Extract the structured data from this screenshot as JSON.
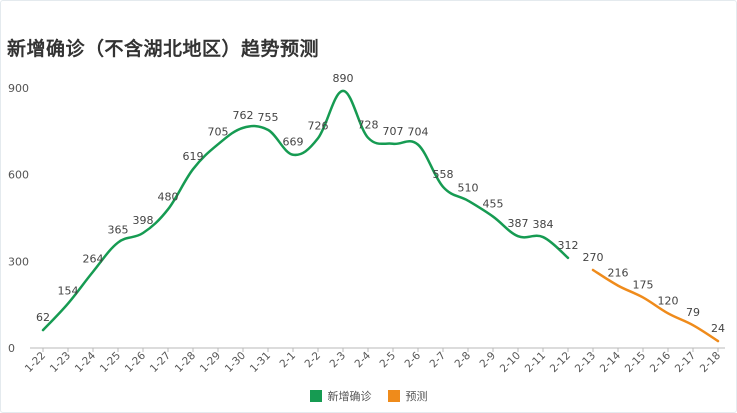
{
  "title": "新增确诊（不含湖北地区）趋势预测",
  "chart_data": {
    "type": "line",
    "title": "新增确诊（不含湖北地区）趋势预测",
    "categories": [
      "1-22",
      "1-23",
      "1-24",
      "1-25",
      "1-26",
      "1-27",
      "1-28",
      "1-29",
      "1-30",
      "1-31",
      "2-1",
      "2-2",
      "2-3",
      "2-4",
      "2-5",
      "2-6",
      "2-7",
      "2-8",
      "2-9",
      "2-10",
      "2-11",
      "2-12",
      "2-13",
      "2-14",
      "2-15",
      "2-16",
      "2-17",
      "2-18"
    ],
    "series": [
      {
        "name": "新增确诊",
        "color": "#169b52",
        "values": [
          62,
          154,
          264,
          365,
          398,
          480,
          619,
          705,
          762,
          755,
          669,
          726,
          890,
          728,
          707,
          704,
          558,
          510,
          455,
          387,
          384,
          312,
          null,
          null,
          null,
          null,
          null,
          null
        ]
      },
      {
        "name": "预测",
        "color": "#ef8b1b",
        "values": [
          null,
          null,
          null,
          null,
          null,
          null,
          null,
          null,
          null,
          null,
          null,
          null,
          null,
          null,
          null,
          null,
          null,
          null,
          null,
          null,
          null,
          null,
          270,
          216,
          175,
          120,
          79,
          24
        ]
      }
    ],
    "yticks": [
      0,
      300,
      600,
      900
    ],
    "ylim": [
      0,
      900
    ],
    "grid": false,
    "legend_position": "bottom-center"
  },
  "legend": [
    {
      "label": "新增确诊",
      "color": "#169b52"
    },
    {
      "label": "预测",
      "color": "#ef8b1b"
    }
  ]
}
